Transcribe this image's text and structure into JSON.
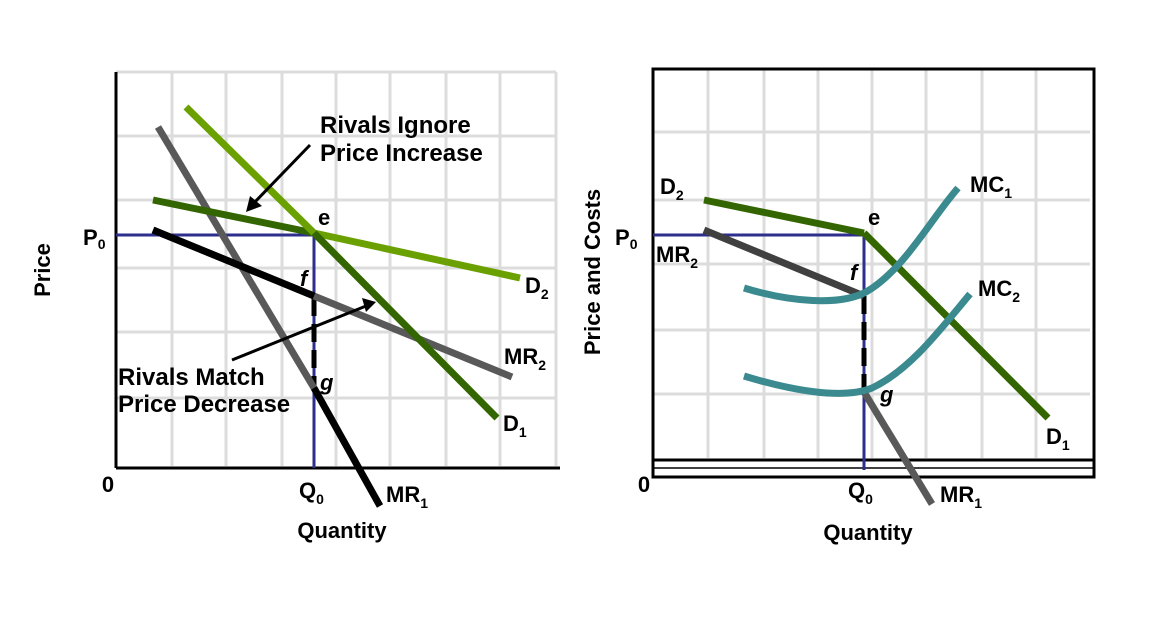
{
  "left_panel": {
    "y_axis_label": "Price",
    "x_axis_label": "Quantity",
    "origin": "0",
    "price_label": {
      "main": "P",
      "sub": "0"
    },
    "quantity_label": {
      "main": "Q",
      "sub": "0"
    },
    "curves": {
      "d1": {
        "main": "D",
        "sub": "1",
        "color": "#5a9a00"
      },
      "d2": {
        "main": "D",
        "sub": "2",
        "color": "#6aa000"
      },
      "mr1": {
        "main": "MR",
        "sub": "1",
        "color": "#000000"
      },
      "mr2": {
        "main": "MR",
        "sub": "2",
        "color": "#595959"
      }
    },
    "points": {
      "e": "e",
      "f": "f",
      "g": "g"
    },
    "annotation_ignore": {
      "line1": "Rivals Ignore",
      "line2": "Price Increase"
    },
    "annotation_match": {
      "line1": "Rivals Match",
      "line2": "Price Decrease"
    }
  },
  "right_panel": {
    "y_axis_label": "Price and Costs",
    "x_axis_label": "Quantity",
    "origin": "0",
    "price_label": {
      "main": "P",
      "sub": "0"
    },
    "quantity_label": {
      "main": "Q",
      "sub": "0"
    },
    "curves": {
      "d1": {
        "main": "D",
        "sub": "1",
        "color": "#336600"
      },
      "d2": {
        "main": "D",
        "sub": "2",
        "color": "#336600"
      },
      "mr1": {
        "main": "MR",
        "sub": "1",
        "color": "#595959"
      },
      "mr2": {
        "main": "MR",
        "sub": "2",
        "color": "#404040"
      },
      "mc1": {
        "main": "MC",
        "sub": "1",
        "color": "#3a8a8f"
      },
      "mc2": {
        "main": "MC",
        "sub": "2",
        "color": "#3a8a8f"
      }
    },
    "points": {
      "e": "e",
      "f": "f",
      "g": "g"
    }
  },
  "colors": {
    "reference_lines": "#2e2e8c",
    "axis": "#000000",
    "grid": "#dcdcdc"
  }
}
